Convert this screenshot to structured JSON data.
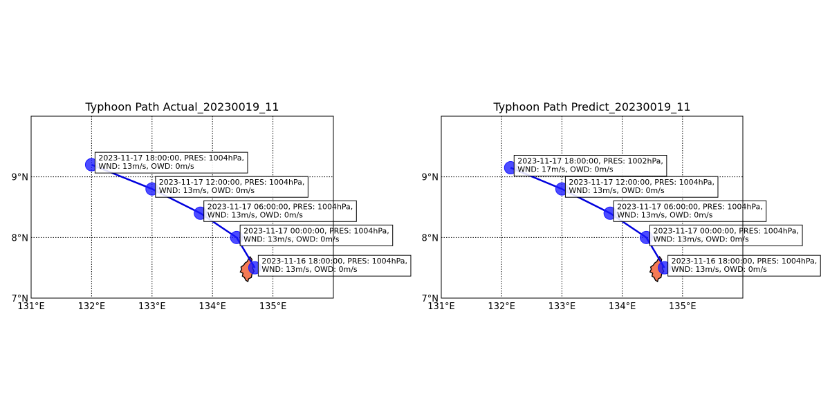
{
  "maps": [
    {
      "title": "Typhoon Path Actual_20230019_11",
      "lon_range": [
        131,
        136
      ],
      "lat_range": [
        7,
        10
      ],
      "lon_ticks": [
        131,
        132,
        133,
        134,
        135
      ],
      "lat_ticks": [
        7,
        8,
        9
      ],
      "lon_tick_labels": [
        "131°E",
        "132°E",
        "133°E",
        "134°E",
        "135°E"
      ],
      "lat_tick_labels": [
        "7°N",
        "8°N",
        "9°N"
      ],
      "points": [
        {
          "lon": 132.0,
          "lat": 9.2,
          "line1": "2023-11-17 18:00:00, PRES: 1004hPa,",
          "line2": "WND: 13m/s, OWD: 0m/s"
        },
        {
          "lon": 133.0,
          "lat": 8.8,
          "line1": "2023-11-17 12:00:00, PRES: 1004hPa,",
          "line2": "WND: 13m/s, OWD: 0m/s"
        },
        {
          "lon": 133.8,
          "lat": 8.4,
          "line1": "2023-11-17 06:00:00, PRES: 1004hPa,",
          "line2": "WND: 13m/s, OWD: 0m/s"
        },
        {
          "lon": 134.4,
          "lat": 8.0,
          "line1": "2023-11-17 00:00:00, PRES: 1004hPa,",
          "line2": "WND: 13m/s, OWD: 0m/s"
        },
        {
          "lon": 134.7,
          "lat": 7.5,
          "line1": "2023-11-16 18:00:00, PRES: 1004hPa,",
          "line2": "WND: 13m/s, OWD: 0m/s"
        }
      ]
    },
    {
      "title": "Typhoon Path Predict_20230019_11",
      "lon_range": [
        131,
        136
      ],
      "lat_range": [
        7,
        10
      ],
      "lon_ticks": [
        131,
        132,
        133,
        134,
        135
      ],
      "lat_ticks": [
        7,
        8,
        9
      ],
      "lon_tick_labels": [
        "131°E",
        "132°E",
        "133°E",
        "134°E",
        "135°E"
      ],
      "lat_tick_labels": [
        "7°N",
        "8°N",
        "9°N"
      ],
      "points": [
        {
          "lon": 132.15,
          "lat": 9.15,
          "line1": "2023-11-17 18:00:00, PRES: 1002hPa,",
          "line2": "WND: 17m/s, OWD: 0m/s"
        },
        {
          "lon": 133.0,
          "lat": 8.8,
          "line1": "2023-11-17 12:00:00, PRES: 1004hPa,",
          "line2": "WND: 13m/s, OWD: 0m/s"
        },
        {
          "lon": 133.8,
          "lat": 8.4,
          "line1": "2023-11-17 06:00:00, PRES: 1004hPa,",
          "line2": "WND: 13m/s, OWD: 0m/s"
        },
        {
          "lon": 134.4,
          "lat": 8.0,
          "line1": "2023-11-17 00:00:00, PRES: 1004hPa,",
          "line2": "WND: 13m/s, OWD: 0m/s"
        },
        {
          "lon": 134.7,
          "lat": 7.5,
          "line1": "2023-11-16 18:00:00, PRES: 1004hPa,",
          "line2": "WND: 13m/s, OWD: 0m/s"
        }
      ]
    }
  ],
  "colors": {
    "track": "#0000dd",
    "point": "#1a1aff",
    "land": "#f47a55"
  }
}
